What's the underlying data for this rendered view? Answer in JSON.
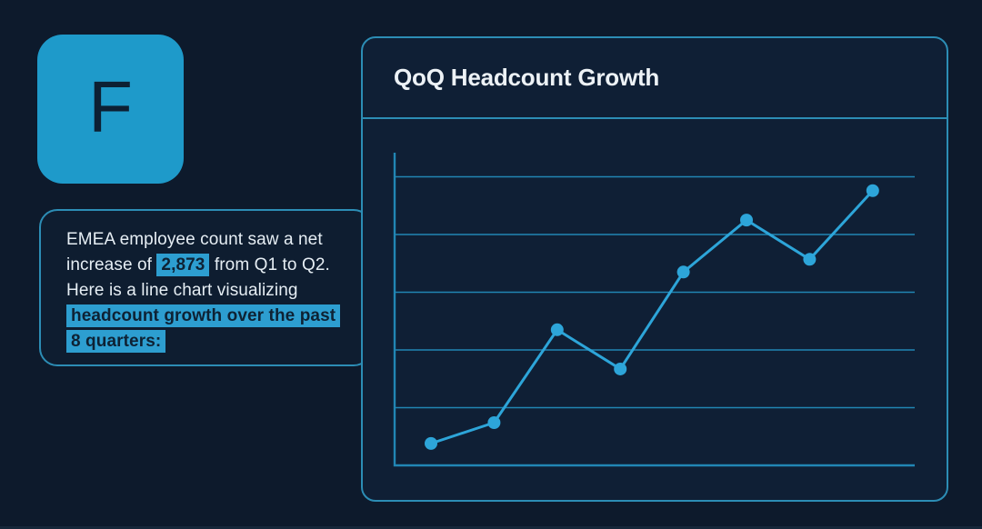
{
  "page": {
    "background": "#0d1a2c",
    "accent": "#2da5d9"
  },
  "logo": {
    "letter": "F",
    "background": "#1e9aca",
    "letter_color": "#0d2033"
  },
  "speech_bubble": {
    "segments": [
      {
        "text": "EMEA employee count saw a net increase of ",
        "highlight": false
      },
      {
        "text": "2,873",
        "highlight": true
      },
      {
        "text": " from Q1 to Q2. Here is a line chart visualizing ",
        "highlight": false
      },
      {
        "text": "headcount growth over the past 8 quarters:",
        "highlight": true
      }
    ],
    "highlight_color": "#2d9ed0",
    "highlight_text_color": "#0e2234",
    "text_color": "#e6eef4",
    "border_color": "#2c8db5"
  },
  "chart_card": {
    "title": "QoQ Headcount Growth",
    "border_color": "#2c8db5",
    "background": "#0f1f35"
  },
  "chart_data": {
    "type": "line",
    "title": "QoQ Headcount Growth",
    "x": [
      1,
      2,
      3,
      4,
      5,
      6,
      7,
      8
    ],
    "x_description": "8 consecutive quarters (no tick labels shown)",
    "xlabel": "",
    "ylabel": "",
    "axis_tick_labels_visible": false,
    "values_gridline_units": [
      0.38,
      0.74,
      2.35,
      1.67,
      3.35,
      4.25,
      3.57,
      4.76
    ],
    "ylim_gridline_units": [
      0,
      5.4
    ],
    "horizontal_gridline_count": 5,
    "vertical_gridlines": false,
    "legend": false,
    "marker": "circle",
    "line_color": "#2da5d9",
    "marker_color": "#2da5d9",
    "gridline_color": "#2186b4",
    "axis_color": "#2186b4"
  }
}
